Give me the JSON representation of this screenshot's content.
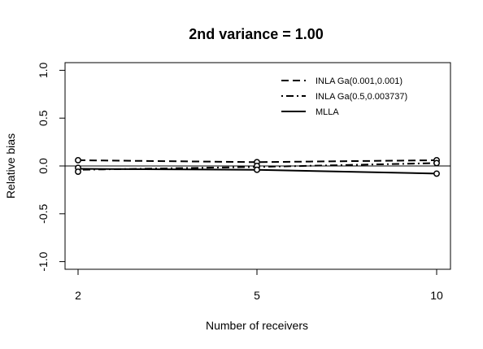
{
  "chart_data": {
    "type": "line",
    "title": "2nd variance = 1.00",
    "xlabel": "Number of receivers",
    "ylabel": "Relative bias",
    "x": [
      2,
      5,
      10
    ],
    "x_tick_labels": [
      "2",
      "5",
      "10"
    ],
    "y_ticks": [
      -1.0,
      -0.5,
      0.0,
      0.5,
      1.0
    ],
    "y_tick_labels": [
      "-1.0",
      "-0.5",
      "0.0",
      "0.5",
      "1.0"
    ],
    "ylim": [
      -1.08,
      1.08
    ],
    "reference_line_y": 0,
    "legend_position": "top-right",
    "grid": false,
    "series": [
      {
        "name": "INLA Ga(0.001,0.001)",
        "line_style": "dashed",
        "values": [
          0.06,
          0.04,
          0.06
        ]
      },
      {
        "name": "INLA Ga(0.5,0.003737)",
        "line_style": "dotdash",
        "values": [
          -0.04,
          -0.01,
          0.03
        ]
      },
      {
        "name": "MLLA",
        "line_style": "solid",
        "values": [
          -0.03,
          -0.04,
          -0.08
        ]
      }
    ],
    "markers": {
      "shape": "open-circle",
      "points": [
        {
          "x": 2,
          "y": 0.06
        },
        {
          "x": 2,
          "y": -0.02
        },
        {
          "x": 2,
          "y": -0.06
        },
        {
          "x": 5,
          "y": 0.04
        },
        {
          "x": 5,
          "y": 0.0
        },
        {
          "x": 5,
          "y": -0.04
        },
        {
          "x": 10,
          "y": 0.06
        },
        {
          "x": 10,
          "y": 0.03
        },
        {
          "x": 10,
          "y": -0.08
        }
      ]
    },
    "colors": {
      "foreground": "#000000",
      "background": "#ffffff"
    }
  }
}
